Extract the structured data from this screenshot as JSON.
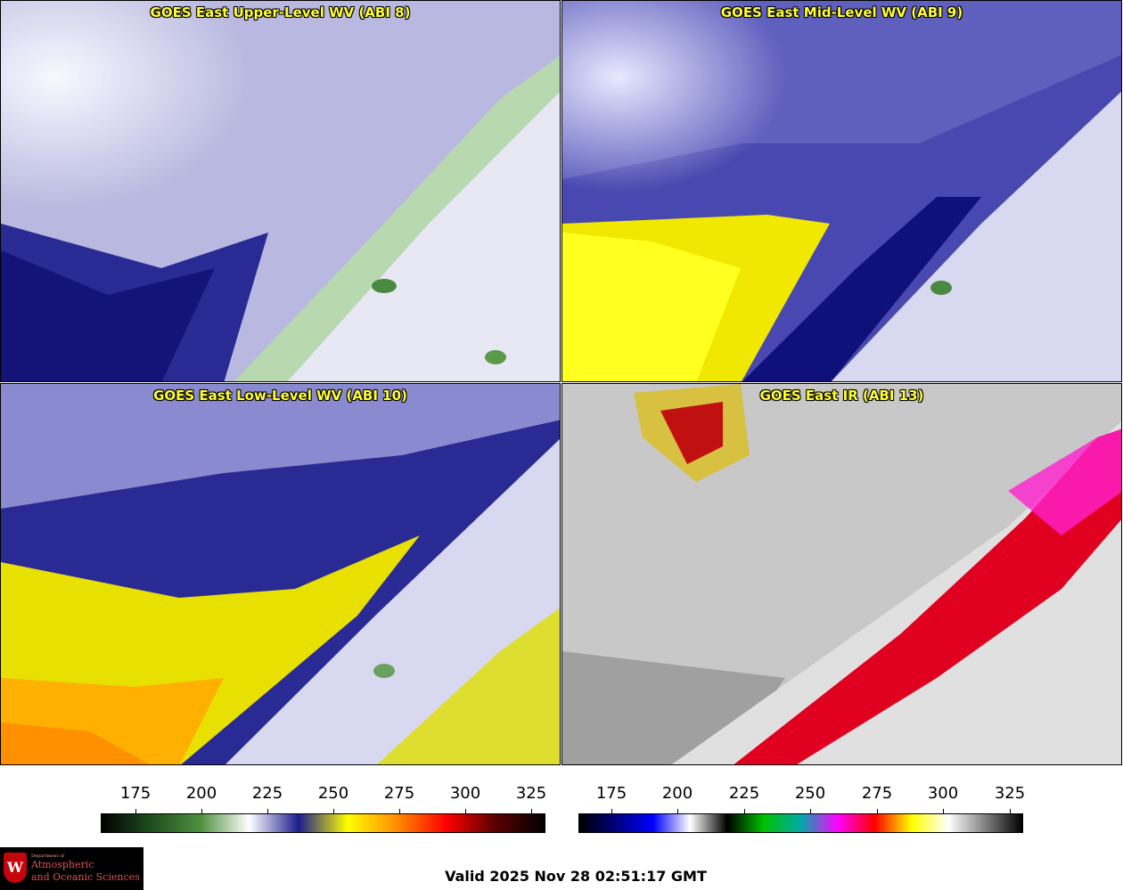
{
  "panels": [
    {
      "title": "GOES East Upper-Level WV (ABI 8)"
    },
    {
      "title": "GOES East Mid-Level WV (ABI 9)"
    },
    {
      "title": "GOES East Low-Level WV (ABI 10)"
    },
    {
      "title": "GOES East IR (ABI 13)"
    }
  ],
  "colorbar_wv": {
    "ticks": [
      "175",
      "200",
      "225",
      "250",
      "275",
      "300",
      "325"
    ],
    "colors": [
      "#000000",
      "#1e4d1e",
      "#4f8f3c",
      "#ffffff",
      "#1c1c8f",
      "#ffff00",
      "#ff8c00",
      "#ff0000",
      "#5a0000",
      "#000000"
    ]
  },
  "colorbar_ir": {
    "ticks": [
      "175",
      "200",
      "225",
      "250",
      "275",
      "300",
      "325"
    ],
    "colors": [
      "#000000",
      "#000080",
      "#0000ff",
      "#ffffff",
      "#000000",
      "#00c000",
      "#00aaaa",
      "#ff00ff",
      "#ff0000",
      "#ffff00",
      "#ffffff",
      "#808080",
      "#000000"
    ]
  },
  "logo": {
    "dept": "Department of",
    "line1": "Atmospheric",
    "line2": "and Oceanic Sciences"
  },
  "valid_time": "Valid 2025 Nov 28 02:51:17 GMT"
}
